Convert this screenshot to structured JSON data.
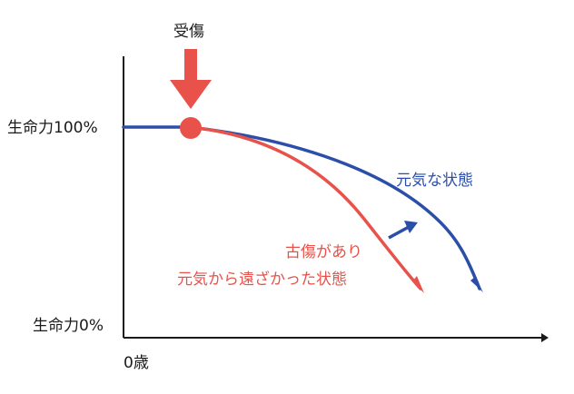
{
  "labels": {
    "injury": "受傷",
    "life_100": "生命力100%",
    "life_0": "生命力0%",
    "age_0": "0歳",
    "healthy_state": "元気な状態",
    "old_injury_line1": "古傷があり",
    "old_injury_line2": "元気から遠ざかった状態"
  },
  "colors": {
    "axis": "#1a1a1a",
    "healthy": "#2b4fa8",
    "injured": "#e8524a",
    "marker": "#e8524a"
  },
  "icons": {
    "injury_arrow": "down-arrow-icon",
    "injury_point": "circle-marker-icon",
    "axis_arrow": "right-arrow-icon"
  }
}
